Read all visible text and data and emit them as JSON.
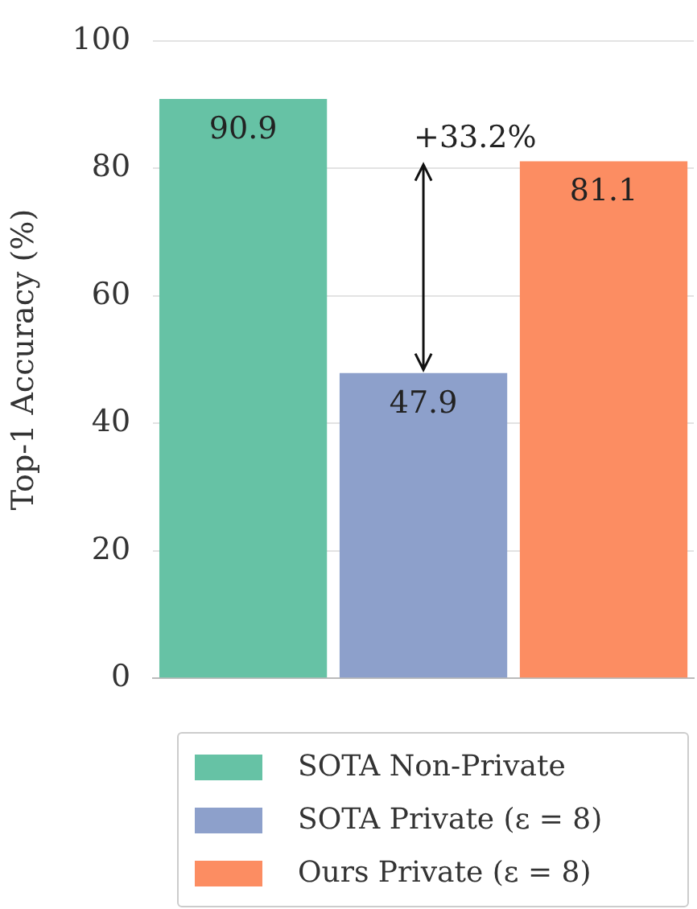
{
  "chart_data": {
    "type": "bar",
    "ylabel": "Top-1 Accuracy (%)",
    "categories": [
      null,
      null,
      null
    ],
    "series": [
      {
        "name": "SOTA Non-Private",
        "color": "#66c2a5",
        "values": [
          90.9,
          null,
          null
        ]
      },
      {
        "name": "SOTA Private (ε = 8)",
        "color": "#8da0cb",
        "values": [
          null,
          47.9,
          null
        ]
      },
      {
        "name": "Ours Private (ε = 8)",
        "color": "#fc8d62",
        "values": [
          null,
          null,
          81.1
        ]
      }
    ],
    "ylim": [
      0,
      100
    ],
    "yticks": [
      0,
      20,
      40,
      60,
      80,
      100
    ],
    "grid": "y",
    "legend": "bottom",
    "data_labels": true,
    "annotations": [
      "+33.2%"
    ]
  }
}
